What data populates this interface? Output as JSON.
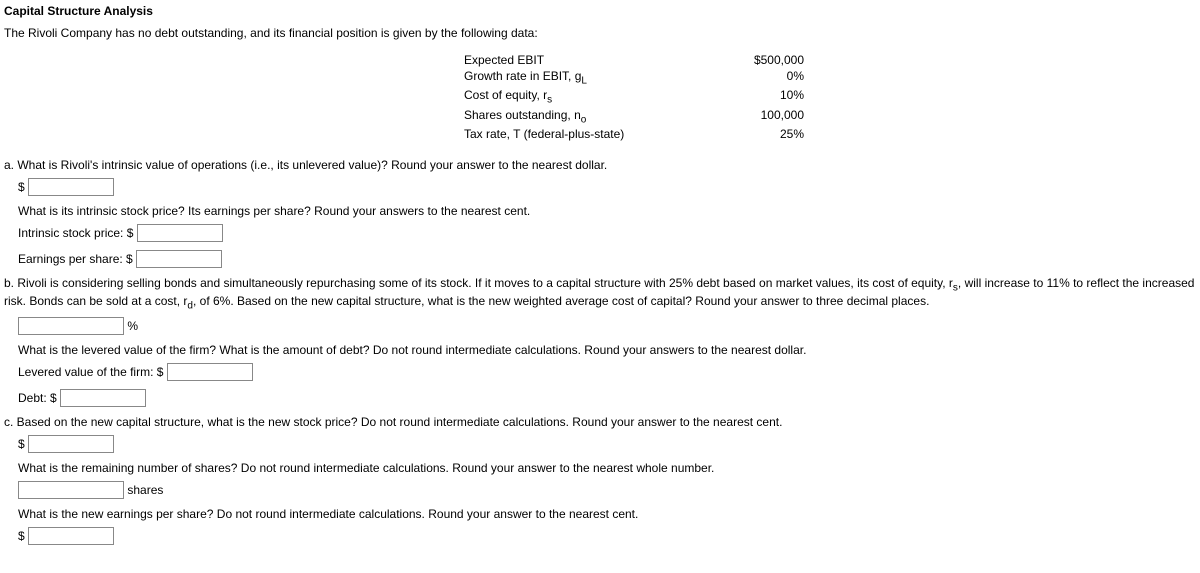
{
  "title": "Capital Structure Analysis",
  "intro": "The Rivoli Company has no debt outstanding, and its financial position is given by the following data:",
  "table": {
    "rows": [
      {
        "label": "Expected EBIT",
        "value": "$500,000"
      },
      {
        "label_html": "Growth rate in EBIT, g<sub>L</sub>",
        "value": "0%"
      },
      {
        "label_html": "Cost of equity, r<sub>s</sub>",
        "value": "10%"
      },
      {
        "label_html": "Shares outstanding, n<sub>o</sub>",
        "value": "100,000"
      },
      {
        "label": "Tax rate, T (federal-plus-state)",
        "value": "25%"
      }
    ]
  },
  "a": {
    "q1": "a. What is Rivoli's intrinsic value of operations (i.e., its unlevered value)? Round your answer to the nearest dollar.",
    "q2": "What is its intrinsic stock price? Its earnings per share? Round your answers to the nearest cent.",
    "intrinsic_price_label": "Intrinsic stock price: $",
    "eps_label": "Earnings per share: $"
  },
  "b": {
    "q1_html": "b. Rivoli is considering selling bonds and simultaneously repurchasing some of its stock. If it moves to a capital structure with 25% debt based on market values, its cost of equity, r<sub>s</sub>, will increase to 11% to reflect the increased risk. Bonds can be sold at a cost, r<sub>d</sub>, of 6%. Based on the new capital structure, what is the new weighted average cost of capital? Round your answer to three decimal places.",
    "q2": "What is the levered value of the firm? What is the amount of debt? Do not round intermediate calculations. Round your answers to the nearest dollar.",
    "levered_label": "Levered value of the firm: $",
    "debt_label": "Debt: $",
    "percent_suffix": " %"
  },
  "c": {
    "q1": "c. Based on the new capital structure, what is the new stock price? Do not round intermediate calculations. Round your answer to the nearest cent.",
    "q2": "What is the remaining number of shares? Do not round intermediate calculations. Round your answer to the nearest whole number.",
    "shares_suffix": " shares",
    "q3": "What is the new earnings per share? Do not round intermediate calculations. Round your answer to the nearest cent."
  },
  "dollar": "$"
}
